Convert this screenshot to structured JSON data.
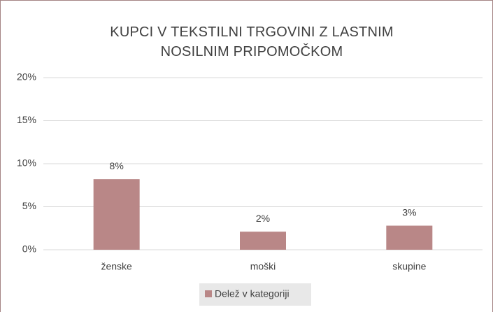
{
  "chart_data": {
    "type": "bar",
    "title": "KUPCI V TEKSTILNI TRGOVINI Z LASTNIM NOSILNIM PRIPOMOČKOM",
    "categories": [
      "ženske",
      "moški",
      "skupine"
    ],
    "series": [
      {
        "name": "Delež v kategoriji",
        "color": "#b98787",
        "values": [
          8.2,
          2.1,
          2.8
        ],
        "value_labels": [
          "8%",
          "2%",
          "3%"
        ]
      }
    ],
    "ylim": [
      0,
      20
    ],
    "yticks": [
      {
        "value": 0,
        "label": "0%"
      },
      {
        "value": 5,
        "label": "5%"
      },
      {
        "value": 10,
        "label": "10%"
      },
      {
        "value": 15,
        "label": "15%"
      },
      {
        "value": 20,
        "label": "20%"
      }
    ],
    "grid": true,
    "legend": "bottom"
  }
}
